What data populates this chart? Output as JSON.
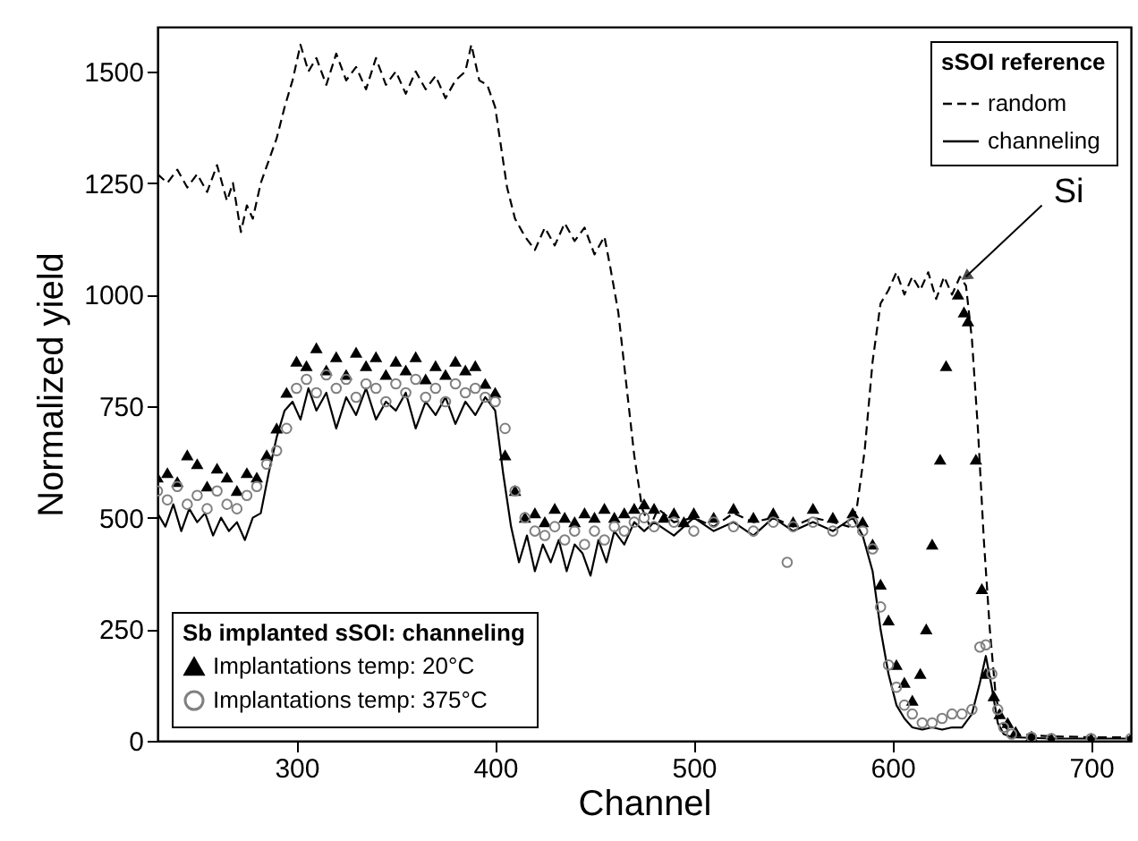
{
  "chart_data": {
    "type": "line",
    "xlabel": "Channel",
    "ylabel": "Normalized yield",
    "xlim": [
      230,
      720
    ],
    "ylim": [
      0,
      1600
    ],
    "xticks": [
      300,
      400,
      500,
      600,
      700
    ],
    "yticks": [
      0,
      250,
      500,
      750,
      1000,
      1250,
      1500
    ],
    "legend_title": [
      "sSOI reference",
      "Sb implanted sSOI: channeling"
    ],
    "legend": [
      "top right",
      "bottom left"
    ],
    "grid": false,
    "annotations": [
      {
        "text": "Si",
        "x": 637,
        "y": 1040
      }
    ],
    "series": [
      {
        "name": "random",
        "line_style": "dashed",
        "color": "#000000",
        "x": [
          230,
          235,
          240,
          245,
          250,
          255,
          260,
          265,
          268,
          272,
          275,
          278,
          282,
          286,
          290,
          294,
          298,
          302,
          306,
          310,
          315,
          320,
          325,
          330,
          335,
          340,
          345,
          350,
          355,
          360,
          365,
          370,
          375,
          380,
          385,
          388,
          392,
          396,
          400,
          403,
          406,
          410,
          415,
          420,
          425,
          430,
          435,
          440,
          445,
          450,
          455,
          458,
          462,
          466,
          470,
          474,
          478,
          482,
          490,
          500,
          510,
          520,
          530,
          540,
          550,
          560,
          570,
          578,
          582,
          586,
          590,
          594,
          598,
          602,
          606,
          610,
          614,
          618,
          622,
          626,
          630,
          634,
          637,
          640,
          643,
          646,
          649,
          652,
          655,
          660,
          680,
          700,
          720
        ],
        "values": [
          1270,
          1250,
          1280,
          1240,
          1270,
          1230,
          1290,
          1210,
          1250,
          1140,
          1200,
          1170,
          1250,
          1300,
          1350,
          1420,
          1480,
          1560,
          1500,
          1530,
          1470,
          1540,
          1480,
          1510,
          1460,
          1530,
          1470,
          1500,
          1450,
          1500,
          1460,
          1490,
          1440,
          1480,
          1500,
          1560,
          1480,
          1470,
          1420,
          1330,
          1240,
          1170,
          1130,
          1100,
          1150,
          1110,
          1160,
          1120,
          1150,
          1090,
          1130,
          1060,
          960,
          800,
          640,
          520,
          480,
          520,
          490,
          500,
          480,
          510,
          490,
          500,
          480,
          500,
          490,
          480,
          520,
          650,
          850,
          980,
          1010,
          1050,
          1000,
          1040,
          1010,
          1050,
          990,
          1040,
          1000,
          1040,
          1020,
          900,
          700,
          450,
          250,
          100,
          40,
          15,
          10,
          8,
          8
        ]
      },
      {
        "name": "channeling",
        "line_style": "solid",
        "color": "#000000",
        "x": [
          230,
          234,
          238,
          242,
          246,
          250,
          254,
          258,
          262,
          266,
          270,
          274,
          278,
          282,
          286,
          290,
          294,
          298,
          302,
          306,
          310,
          315,
          320,
          325,
          330,
          335,
          340,
          345,
          350,
          355,
          360,
          365,
          370,
          375,
          380,
          385,
          390,
          395,
          400,
          404,
          408,
          412,
          416,
          420,
          424,
          428,
          432,
          436,
          440,
          444,
          448,
          452,
          456,
          460,
          465,
          470,
          475,
          480,
          490,
          500,
          510,
          520,
          530,
          540,
          550,
          560,
          570,
          580,
          585,
          590,
          594,
          598,
          602,
          606,
          610,
          615,
          620,
          625,
          630,
          635,
          640,
          644,
          647,
          650,
          653,
          656,
          660,
          680,
          700,
          720
        ],
        "values": [
          510,
          480,
          530,
          470,
          520,
          490,
          510,
          460,
          500,
          470,
          490,
          450,
          500,
          510,
          600,
          680,
          740,
          760,
          720,
          790,
          740,
          780,
          700,
          770,
          730,
          790,
          720,
          760,
          740,
          780,
          700,
          760,
          730,
          770,
          710,
          760,
          730,
          770,
          740,
          600,
          480,
          400,
          460,
          380,
          440,
          400,
          450,
          380,
          440,
          420,
          370,
          450,
          400,
          470,
          440,
          490,
          470,
          490,
          460,
          500,
          470,
          490,
          460,
          500,
          470,
          490,
          470,
          500,
          460,
          380,
          250,
          150,
          80,
          50,
          30,
          25,
          30,
          25,
          30,
          30,
          60,
          130,
          190,
          120,
          40,
          15,
          8,
          5,
          5,
          5
        ]
      },
      {
        "name": "Implantations temp: 20°C",
        "type": "scatter",
        "marker": "triangle",
        "color": "#000000",
        "x": [
          230,
          235,
          240,
          245,
          250,
          255,
          260,
          265,
          270,
          275,
          280,
          285,
          290,
          295,
          300,
          305,
          310,
          315,
          320,
          325,
          330,
          335,
          340,
          345,
          350,
          355,
          360,
          365,
          370,
          375,
          380,
          385,
          390,
          395,
          400,
          405,
          410,
          415,
          420,
          425,
          430,
          435,
          440,
          445,
          450,
          455,
          460,
          465,
          470,
          475,
          480,
          485,
          490,
          495,
          500,
          510,
          520,
          530,
          540,
          550,
          560,
          570,
          580,
          585,
          590,
          594,
          598,
          602,
          606,
          610,
          614,
          617,
          620,
          624,
          627,
          633,
          636,
          638,
          642,
          645,
          647,
          651,
          654,
          658,
          662,
          670,
          680,
          700,
          720
        ],
        "values": [
          590,
          600,
          580,
          640,
          620,
          570,
          610,
          590,
          560,
          600,
          590,
          640,
          700,
          780,
          850,
          840,
          880,
          830,
          860,
          820,
          870,
          840,
          860,
          820,
          850,
          830,
          860,
          810,
          840,
          820,
          850,
          830,
          840,
          800,
          780,
          640,
          560,
          500,
          510,
          490,
          520,
          500,
          490,
          510,
          500,
          520,
          500,
          510,
          520,
          530,
          520,
          500,
          510,
          490,
          510,
          500,
          520,
          500,
          510,
          490,
          520,
          500,
          510,
          490,
          440,
          350,
          270,
          170,
          130,
          90,
          150,
          250,
          440,
          630,
          840,
          1000,
          960,
          940,
          630,
          340,
          150,
          100,
          60,
          40,
          20,
          10,
          5,
          5,
          5
        ]
      },
      {
        "name": "Implantations temp: 375°C",
        "type": "scatter",
        "marker": "circle",
        "color": "#808080",
        "x": [
          230,
          235,
          240,
          245,
          250,
          255,
          260,
          265,
          270,
          275,
          280,
          285,
          290,
          295,
          300,
          305,
          310,
          315,
          320,
          325,
          330,
          335,
          340,
          345,
          350,
          355,
          360,
          365,
          370,
          375,
          380,
          385,
          390,
          395,
          400,
          405,
          410,
          415,
          420,
          425,
          430,
          435,
          440,
          445,
          450,
          455,
          460,
          465,
          470,
          475,
          480,
          490,
          500,
          510,
          520,
          530,
          540,
          547,
          550,
          560,
          570,
          580,
          585,
          590,
          594,
          598,
          602,
          606,
          610,
          615,
          620,
          625,
          630,
          635,
          640,
          644,
          647,
          650,
          653,
          656,
          660,
          670,
          680,
          700,
          720
        ],
        "values": [
          560,
          540,
          570,
          530,
          550,
          520,
          560,
          530,
          520,
          550,
          570,
          620,
          650,
          700,
          790,
          810,
          780,
          820,
          790,
          810,
          770,
          800,
          790,
          760,
          800,
          780,
          810,
          770,
          790,
          760,
          800,
          780,
          790,
          770,
          760,
          700,
          560,
          500,
          470,
          460,
          480,
          450,
          470,
          440,
          470,
          450,
          480,
          470,
          490,
          500,
          480,
          490,
          470,
          490,
          480,
          470,
          490,
          400,
          480,
          490,
          470,
          490,
          470,
          430,
          300,
          170,
          120,
          80,
          60,
          40,
          40,
          50,
          60,
          60,
          70,
          210,
          215,
          150,
          70,
          30,
          15,
          8,
          5,
          5,
          5
        ]
      }
    ]
  }
}
